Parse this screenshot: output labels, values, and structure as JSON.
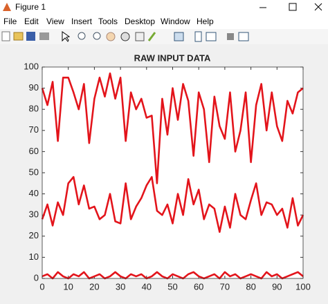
{
  "window": {
    "title": "Figure 1",
    "menu": [
      "File",
      "Edit",
      "View",
      "Insert",
      "Tools",
      "Desktop",
      "Window",
      "Help"
    ]
  },
  "chart_data": {
    "type": "line",
    "title": "RAW INPUT DATA",
    "x": [
      0,
      2,
      4,
      6,
      8,
      10,
      12,
      14,
      16,
      18,
      20,
      22,
      24,
      26,
      28,
      30,
      32,
      34,
      36,
      38,
      40,
      42,
      44,
      46,
      48,
      50,
      52,
      54,
      56,
      58,
      60,
      62,
      64,
      66,
      68,
      70,
      72,
      74,
      76,
      78,
      80,
      82,
      84,
      86,
      88,
      90,
      92,
      94,
      96,
      98,
      100
    ],
    "series": [
      {
        "color": "#e3141b",
        "values": [
          90,
          82,
          93,
          65,
          95,
          95,
          88,
          80,
          92,
          64,
          85,
          95,
          86,
          97,
          85,
          95,
          65,
          88,
          80,
          85,
          76,
          77,
          45,
          85,
          68,
          90,
          75,
          92,
          84,
          58,
          88,
          80,
          55,
          86,
          72,
          66,
          88,
          60,
          70,
          88,
          55,
          82,
          92,
          70,
          88,
          72,
          65,
          84,
          78,
          88,
          90
        ]
      },
      {
        "color": "#e3141b",
        "values": [
          28,
          35,
          25,
          36,
          30,
          45,
          48,
          35,
          44,
          33,
          34,
          28,
          30,
          40,
          27,
          26,
          45,
          28,
          34,
          38,
          44,
          48,
          32,
          30,
          35,
          26,
          40,
          30,
          47,
          35,
          42,
          28,
          35,
          33,
          22,
          34,
          24,
          40,
          30,
          28,
          37,
          45,
          30,
          36,
          35,
          30,
          33,
          24,
          38,
          25,
          30
        ]
      },
      {
        "color": "#e3141b",
        "values": [
          1,
          2,
          0,
          3,
          1,
          0,
          2,
          1,
          3,
          0,
          1,
          2,
          0,
          1,
          3,
          1,
          0,
          2,
          1,
          2,
          0,
          1,
          3,
          1,
          0,
          2,
          1,
          0,
          2,
          3,
          1,
          0,
          1,
          2,
          0,
          3,
          1,
          2,
          0,
          1,
          2,
          1,
          0,
          3,
          1,
          2,
          0,
          1,
          2,
          3,
          1
        ]
      }
    ],
    "xlim": [
      0,
      100
    ],
    "xticks": [
      0,
      10,
      20,
      30,
      40,
      50,
      60,
      70,
      80,
      90,
      100
    ],
    "ylim": [
      0,
      100
    ],
    "yticks": [
      0,
      10,
      20,
      30,
      40,
      50,
      60,
      70,
      80,
      90,
      100
    ],
    "grid": false
  }
}
